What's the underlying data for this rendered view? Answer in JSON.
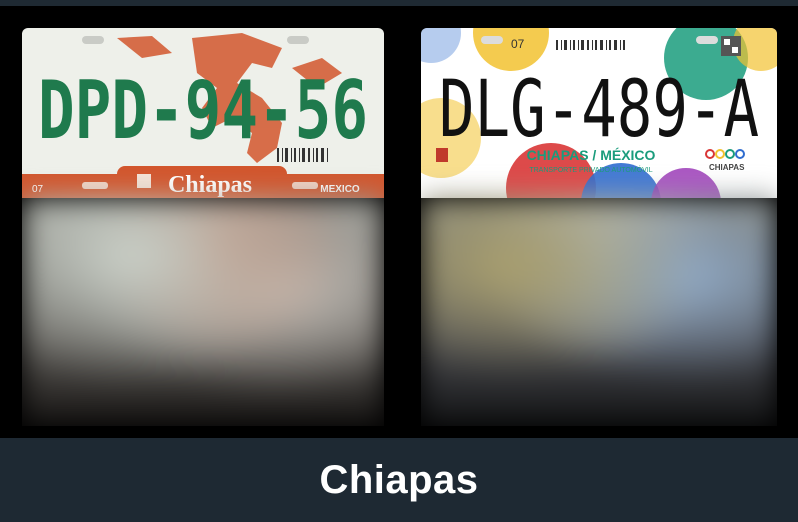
{
  "plates": [
    {
      "number": "DPD-94-56",
      "code": "07",
      "state_name": "Chiapas",
      "country": "MEXICO",
      "colors": {
        "background": "#eef0ea",
        "number": "#1f7a4d",
        "accent": "#d2562d"
      }
    },
    {
      "number": "DLG-489-A",
      "code": "07",
      "slogan": "CHIAPAS / MÉXICO",
      "subtext": "TRANSPORTE PRIVADO AUTOMÓVIL",
      "brand": "CHIAPAS",
      "colors": {
        "background": "#ffffff",
        "number": "#111111",
        "accent": "#1a9c7c"
      }
    }
  ],
  "footer": {
    "title": "Chiapas"
  }
}
